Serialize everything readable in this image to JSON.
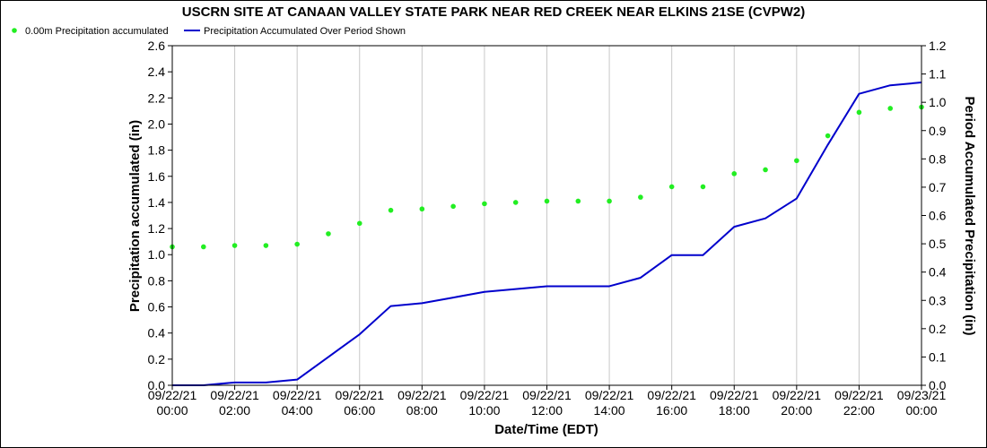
{
  "chart_data": {
    "type": "line",
    "title": "USCRN SITE AT CANAAN VALLEY STATE PARK NEAR RED CREEK NEAR ELKINS 21SE (CVPW2)",
    "xlabel": "Date/Time (EDT)",
    "ylabel_left": "Precipitation accumulated (in)",
    "ylabel_right": "Period Accumulated Precipitation (in)",
    "ylim_left": [
      0,
      2.6
    ],
    "ylim_right": [
      0,
      1.2
    ],
    "grid": "vertical",
    "legend_position": "top-left",
    "x_ticks": [
      {
        "hour": 0,
        "date": "09/22/21",
        "time": "00:00"
      },
      {
        "hour": 2,
        "date": "09/22/21",
        "time": "02:00"
      },
      {
        "hour": 4,
        "date": "09/22/21",
        "time": "04:00"
      },
      {
        "hour": 6,
        "date": "09/22/21",
        "time": "06:00"
      },
      {
        "hour": 8,
        "date": "09/22/21",
        "time": "08:00"
      },
      {
        "hour": 10,
        "date": "09/22/21",
        "time": "10:00"
      },
      {
        "hour": 12,
        "date": "09/22/21",
        "time": "12:00"
      },
      {
        "hour": 14,
        "date": "09/22/21",
        "time": "14:00"
      },
      {
        "hour": 16,
        "date": "09/22/21",
        "time": "16:00"
      },
      {
        "hour": 18,
        "date": "09/22/21",
        "time": "18:00"
      },
      {
        "hour": 20,
        "date": "09/22/21",
        "time": "20:00"
      },
      {
        "hour": 22,
        "date": "09/22/21",
        "time": "22:00"
      },
      {
        "hour": 24,
        "date": "09/23/21",
        "time": "00:00"
      }
    ],
    "y_ticks_left": [
      "0.0",
      "0.2",
      "0.4",
      "0.6",
      "0.8",
      "1.0",
      "1.2",
      "1.4",
      "1.6",
      "1.8",
      "2.0",
      "2.2",
      "2.4",
      "2.6"
    ],
    "y_ticks_right": [
      "0.0",
      "0.1",
      "0.2",
      "0.3",
      "0.4",
      "0.5",
      "0.6",
      "0.7",
      "0.8",
      "0.9",
      "1.0",
      "1.1",
      "1.2"
    ],
    "series": [
      {
        "name": "0.00m Precipitation accumulated",
        "kind": "scatter",
        "axis": "left",
        "color": "#22ee22",
        "x": [
          0,
          1,
          2,
          3,
          4,
          5,
          6,
          7,
          8,
          9,
          10,
          11,
          12,
          13,
          14,
          15,
          16,
          17,
          18,
          19,
          20,
          21,
          22,
          23,
          24
        ],
        "values": [
          1.06,
          1.06,
          1.07,
          1.07,
          1.08,
          1.16,
          1.24,
          1.34,
          1.35,
          1.37,
          1.39,
          1.4,
          1.41,
          1.41,
          1.41,
          1.44,
          1.52,
          1.52,
          1.62,
          1.65,
          1.72,
          1.91,
          2.09,
          2.12,
          2.13
        ]
      },
      {
        "name": "Precipitation Accumulated Over Period Shown",
        "kind": "line",
        "axis": "right",
        "color": "#0000cc",
        "x": [
          0,
          1,
          2,
          3,
          4,
          5,
          6,
          7,
          8,
          9,
          10,
          11,
          12,
          13,
          14,
          15,
          16,
          17,
          18,
          19,
          20,
          21,
          22,
          23,
          24
        ],
        "values": [
          0.0,
          0.0,
          0.01,
          0.01,
          0.02,
          0.1,
          0.18,
          0.28,
          0.29,
          0.31,
          0.33,
          0.34,
          0.35,
          0.35,
          0.35,
          0.38,
          0.46,
          0.46,
          0.56,
          0.59,
          0.66,
          0.85,
          1.03,
          1.06,
          1.07
        ]
      }
    ]
  }
}
